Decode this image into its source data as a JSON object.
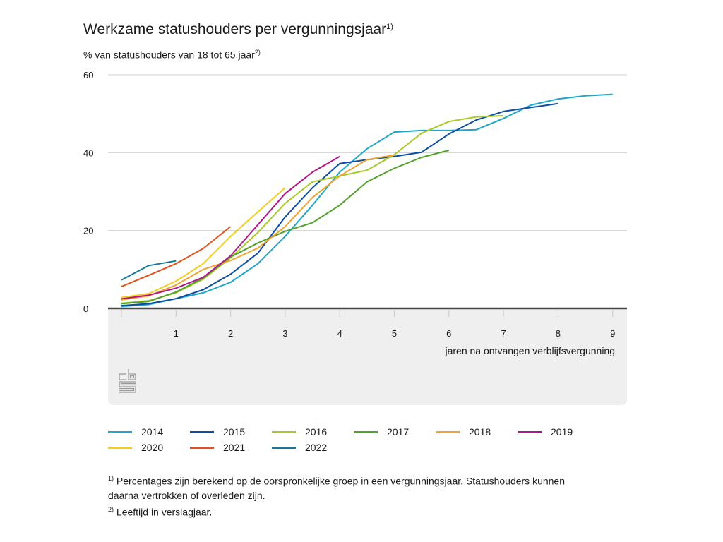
{
  "chart_data": {
    "type": "line",
    "title": "Werkzame statushouders per vergunningsjaar",
    "title_note": "1)",
    "subtitle": "% van statushouders van 18 tot 65 jaar",
    "subtitle_note": "2)",
    "xlabel": "jaren na ontvangen verblijfsvergunning",
    "ylabel": "",
    "xlim": [
      0,
      9
    ],
    "ylim": [
      0,
      60
    ],
    "x_ticks": [
      1,
      2,
      3,
      4,
      5,
      6,
      7,
      8,
      9
    ],
    "y_ticks": [
      0,
      20,
      40,
      60
    ],
    "grid": true,
    "legend_position": "bottom",
    "series": [
      {
        "name": "2014",
        "color": "#1fa6c9",
        "x": [
          0,
          0.5,
          1,
          1.5,
          2,
          2.5,
          3,
          3.5,
          4,
          4.5,
          5,
          5.5,
          6,
          6.5,
          7,
          7.5,
          8,
          8.5,
          9
        ],
        "values": [
          0.5,
          1.0,
          2.5,
          4.0,
          6.7,
          11.5,
          18.5,
          26.5,
          35.0,
          41.0,
          45.3,
          45.7,
          45.7,
          45.9,
          48.8,
          52.2,
          53.8,
          54.6,
          55.0
        ]
      },
      {
        "name": "2015",
        "color": "#0c4ea2",
        "x": [
          0,
          0.5,
          1,
          1.5,
          2,
          2.5,
          3,
          3.5,
          4,
          4.5,
          5,
          5.5,
          6,
          6.5,
          7,
          7.5,
          8
        ],
        "values": [
          0.7,
          1.2,
          2.5,
          4.8,
          8.8,
          14.2,
          23.5,
          31.0,
          37.2,
          38.2,
          39.0,
          40.1,
          44.8,
          48.4,
          50.6,
          51.6,
          52.6
        ]
      },
      {
        "name": "2016",
        "color": "#a8c92a",
        "x": [
          0,
          0.5,
          1,
          1.5,
          2,
          2.5,
          3,
          3.5,
          4,
          4.5,
          5,
          5.5,
          6,
          6.5,
          7
        ],
        "values": [
          1.3,
          2.0,
          4.0,
          7.5,
          13.0,
          19.5,
          27.0,
          32.5,
          34.0,
          35.5,
          39.5,
          45.0,
          48.0,
          49.2,
          49.5
        ]
      },
      {
        "name": "2017",
        "color": "#53a22d",
        "x": [
          0,
          0.5,
          1,
          1.5,
          2,
          2.5,
          3,
          3.5,
          4,
          4.5,
          5,
          5.5,
          6
        ],
        "values": [
          1.2,
          1.8,
          4.2,
          7.8,
          13.2,
          16.8,
          19.8,
          22.0,
          26.5,
          32.5,
          36.0,
          38.8,
          40.6
        ]
      },
      {
        "name": "2018",
        "color": "#f0a32e",
        "x": [
          0,
          0.5,
          1,
          1.5,
          2,
          2.5,
          3,
          3.5,
          4,
          4.5,
          5
        ],
        "values": [
          2.2,
          3.2,
          6.0,
          10.0,
          12.3,
          15.5,
          21.0,
          28.5,
          34.0,
          38.2,
          39.4
        ]
      },
      {
        "name": "2019",
        "color": "#b0168c",
        "x": [
          0,
          0.5,
          1,
          1.5,
          2,
          2.5,
          3,
          3.5,
          4
        ],
        "values": [
          2.5,
          3.4,
          5.2,
          8.0,
          13.5,
          21.5,
          29.5,
          35.0,
          39.0
        ]
      },
      {
        "name": "2020",
        "color": "#f3cd1d",
        "x": [
          0,
          0.5,
          1,
          1.5,
          2,
          2.5,
          3
        ],
        "values": [
          2.8,
          3.8,
          7.0,
          11.5,
          18.5,
          24.8,
          31.0
        ]
      },
      {
        "name": "2021",
        "color": "#e0531f",
        "x": [
          0,
          0.5,
          1,
          1.5,
          2
        ],
        "values": [
          5.6,
          8.5,
          11.5,
          15.4,
          21.0
        ]
      },
      {
        "name": "2022",
        "color": "#157a94",
        "x": [
          0,
          0.5,
          1
        ],
        "values": [
          7.3,
          11.0,
          12.2
        ]
      }
    ]
  },
  "legend": [
    {
      "label": "2014",
      "color": "#1fa6c9"
    },
    {
      "label": "2015",
      "color": "#0c4ea2"
    },
    {
      "label": "2016",
      "color": "#a8c92a"
    },
    {
      "label": "2017",
      "color": "#53a22d"
    },
    {
      "label": "2018",
      "color": "#f0a32e"
    },
    {
      "label": "2019",
      "color": "#b0168c"
    },
    {
      "label": "2020",
      "color": "#f3cd1d"
    },
    {
      "label": "2021",
      "color": "#e0531f"
    },
    {
      "label": "2022",
      "color": "#157a94"
    }
  ],
  "footnotes": {
    "note1_marker": "1)",
    "note1_line1": "Percentages zijn berekend op de oorspronkelijke groep in een vergunningsjaar. Statushouders kunnen",
    "note1_line2": "daarna vertrokken of overleden zijn.",
    "note2_marker": "2)",
    "note2": "Leeftijd in verslagjaar."
  },
  "logo": {
    "name": "cbs-logo"
  }
}
